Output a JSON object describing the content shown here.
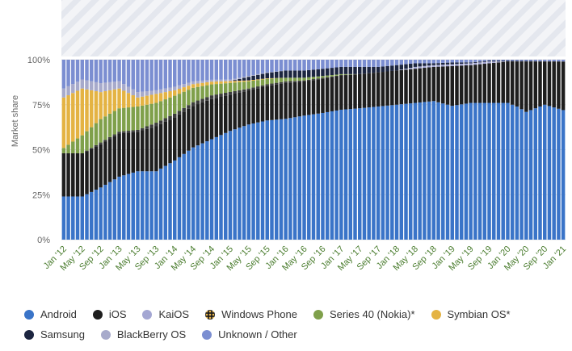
{
  "chart_data": {
    "type": "bar",
    "stacked": "percent",
    "ylabel": "Market share",
    "yticks": [
      "0%",
      "25%",
      "50%",
      "75%",
      "100%"
    ],
    "ylim": [
      0,
      100
    ],
    "grid": true,
    "legend_position": "bottom",
    "x_tick_labels": [
      "Jan '12",
      "May '12",
      "Sep '12",
      "Jan '13",
      "May '13",
      "Sep '13",
      "Jan '14",
      "May '14",
      "Sep '14",
      "Jan '15",
      "May '15",
      "Sep '15",
      "Jan '16",
      "May '16",
      "Sep '16",
      "Jan '17",
      "May '17",
      "Sep '17",
      "Jan '18",
      "May '18",
      "Sep '18",
      "Jan '19",
      "May '19",
      "Sep '19",
      "Jan '20",
      "May '20",
      "Sep '20",
      "Jan '21"
    ],
    "months": [
      "Jan '12",
      "Feb '12",
      "Mar '12",
      "Apr '12",
      "May '12",
      "Jun '12",
      "Jul '12",
      "Aug '12",
      "Sep '12",
      "Oct '12",
      "Nov '12",
      "Dec '12",
      "Jan '13",
      "Feb '13",
      "Mar '13",
      "Apr '13",
      "May '13",
      "Jun '13",
      "Jul '13",
      "Aug '13",
      "Sep '13",
      "Oct '13",
      "Nov '13",
      "Dec '13",
      "Jan '14",
      "Feb '14",
      "Mar '14",
      "Apr '14",
      "May '14",
      "Jun '14",
      "Jul '14",
      "Aug '14",
      "Sep '14",
      "Oct '14",
      "Nov '14",
      "Dec '14",
      "Jan '15",
      "Feb '15",
      "Mar '15",
      "Apr '15",
      "May '15",
      "Jun '15",
      "Jul '15",
      "Aug '15",
      "Sep '15",
      "Oct '15",
      "Nov '15",
      "Dec '15",
      "Jan '16",
      "Feb '16",
      "Mar '16",
      "Apr '16",
      "May '16",
      "Jun '16",
      "Jul '16",
      "Aug '16",
      "Sep '16",
      "Oct '16",
      "Nov '16",
      "Dec '16",
      "Jan '17",
      "Feb '17",
      "Mar '17",
      "Apr '17",
      "May '17",
      "Jun '17",
      "Jul '17",
      "Aug '17",
      "Sep '17",
      "Oct '17",
      "Nov '17",
      "Dec '17",
      "Jan '18",
      "Feb '18",
      "Mar '18",
      "Apr '18",
      "May '18",
      "Jun '18",
      "Jul '18",
      "Aug '18",
      "Sep '18",
      "Oct '18",
      "Nov '18",
      "Dec '18",
      "Jan '19",
      "Feb '19",
      "Mar '19",
      "Apr '19",
      "May '19",
      "Jun '19",
      "Jul '19",
      "Aug '19",
      "Sep '19",
      "Oct '19",
      "Nov '19",
      "Dec '19",
      "Jan '20",
      "Feb '20",
      "Mar '20",
      "Apr '20",
      "May '20",
      "Jun '20",
      "Jul '20",
      "Aug '20",
      "Sep '20",
      "Oct '20",
      "Nov '20",
      "Dec '20",
      "Jan '21"
    ],
    "value_anchors": {
      "Android": [
        [
          0,
          24
        ],
        [
          4,
          24
        ],
        [
          8,
          29
        ],
        [
          12,
          35
        ],
        [
          16,
          38
        ],
        [
          20,
          38
        ],
        [
          24,
          44
        ],
        [
          28,
          51
        ],
        [
          32,
          55
        ],
        [
          36,
          60
        ],
        [
          40,
          64
        ],
        [
          44,
          66
        ],
        [
          48,
          67
        ],
        [
          52,
          69
        ],
        [
          56,
          70
        ],
        [
          60,
          72
        ],
        [
          64,
          73
        ],
        [
          68,
          74
        ],
        [
          72,
          75
        ],
        [
          76,
          76
        ],
        [
          80,
          77
        ],
        [
          84,
          74
        ],
        [
          88,
          76
        ],
        [
          92,
          76
        ],
        [
          96,
          76
        ],
        [
          98,
          74
        ],
        [
          100,
          71
        ],
        [
          104,
          75
        ],
        [
          108,
          72
        ],
        [
          109,
          72
        ]
      ],
      "iOS": [
        [
          0,
          24
        ],
        [
          4,
          24
        ],
        [
          8,
          24
        ],
        [
          12,
          24
        ],
        [
          16,
          22
        ],
        [
          20,
          25
        ],
        [
          24,
          24
        ],
        [
          28,
          23
        ],
        [
          32,
          22
        ],
        [
          36,
          20
        ],
        [
          40,
          19
        ],
        [
          44,
          19
        ],
        [
          48,
          20
        ],
        [
          52,
          19
        ],
        [
          56,
          19
        ],
        [
          60,
          19
        ],
        [
          64,
          19
        ],
        [
          68,
          19
        ],
        [
          72,
          19
        ],
        [
          76,
          19
        ],
        [
          80,
          19
        ],
        [
          84,
          22
        ],
        [
          88,
          21
        ],
        [
          92,
          22
        ],
        [
          96,
          23
        ],
        [
          98,
          25
        ],
        [
          100,
          28
        ],
        [
          104,
          24
        ],
        [
          108,
          27
        ],
        [
          109,
          27
        ]
      ],
      "KaiOS": [
        [
          0,
          0
        ],
        [
          72,
          0
        ],
        [
          76,
          1
        ],
        [
          80,
          1
        ],
        [
          84,
          1
        ],
        [
          88,
          1
        ],
        [
          92,
          1
        ],
        [
          96,
          0
        ],
        [
          109,
          0
        ]
      ],
      "Windows Phone": [
        [
          0,
          0
        ],
        [
          4,
          0
        ],
        [
          8,
          1
        ],
        [
          12,
          1
        ],
        [
          16,
          1
        ],
        [
          20,
          2
        ],
        [
          24,
          2
        ],
        [
          28,
          2
        ],
        [
          32,
          2
        ],
        [
          36,
          1.5
        ],
        [
          40,
          1
        ],
        [
          44,
          1
        ],
        [
          48,
          0.8
        ],
        [
          52,
          0.6
        ],
        [
          56,
          0.4
        ],
        [
          60,
          0.2
        ],
        [
          64,
          0
        ],
        [
          109,
          0
        ]
      ],
      "Series 40 (Nokia)*": [
        [
          0,
          3
        ],
        [
          4,
          10
        ],
        [
          8,
          13
        ],
        [
          12,
          13
        ],
        [
          16,
          13
        ],
        [
          20,
          11
        ],
        [
          24,
          10
        ],
        [
          28,
          8
        ],
        [
          32,
          6
        ],
        [
          36,
          5
        ],
        [
          40,
          4
        ],
        [
          44,
          3
        ],
        [
          48,
          2
        ],
        [
          52,
          1.5
        ],
        [
          56,
          1
        ],
        [
          60,
          0.5
        ],
        [
          64,
          0
        ],
        [
          109,
          0
        ]
      ],
      "Symbian OS*": [
        [
          0,
          28
        ],
        [
          4,
          26
        ],
        [
          8,
          15
        ],
        [
          12,
          11
        ],
        [
          16,
          5
        ],
        [
          20,
          5
        ],
        [
          24,
          3
        ],
        [
          28,
          2
        ],
        [
          32,
          1.5
        ],
        [
          36,
          1
        ],
        [
          40,
          0.5
        ],
        [
          44,
          0.3
        ],
        [
          48,
          0
        ],
        [
          109,
          0
        ]
      ],
      "Samsung": [
        [
          0,
          0
        ],
        [
          36,
          0
        ],
        [
          40,
          2
        ],
        [
          44,
          3
        ],
        [
          48,
          4
        ],
        [
          52,
          4
        ],
        [
          56,
          4
        ],
        [
          60,
          4
        ],
        [
          64,
          4
        ],
        [
          68,
          3
        ],
        [
          72,
          3
        ],
        [
          76,
          2
        ],
        [
          80,
          1
        ],
        [
          84,
          1
        ],
        [
          88,
          0.5
        ],
        [
          92,
          0.5
        ],
        [
          96,
          0.5
        ],
        [
          109,
          0
        ]
      ],
      "BlackBerry OS": [
        [
          0,
          5
        ],
        [
          4,
          5
        ],
        [
          8,
          5
        ],
        [
          12,
          4
        ],
        [
          16,
          3
        ],
        [
          20,
          2
        ],
        [
          24,
          2
        ],
        [
          28,
          1.5
        ],
        [
          32,
          1
        ],
        [
          36,
          0.8
        ],
        [
          40,
          0.5
        ],
        [
          44,
          0.3
        ],
        [
          48,
          0
        ],
        [
          109,
          0
        ]
      ],
      "Unknown / Other": [
        [
          0,
          16
        ],
        [
          4,
          11
        ],
        [
          8,
          13
        ],
        [
          12,
          12
        ],
        [
          16,
          18
        ],
        [
          20,
          17
        ],
        [
          24,
          15
        ],
        [
          28,
          12
        ],
        [
          32,
          11
        ],
        [
          36,
          11
        ],
        [
          40,
          9
        ],
        [
          44,
          7
        ],
        [
          48,
          6
        ],
        [
          52,
          6
        ],
        [
          56,
          5
        ],
        [
          60,
          4
        ],
        [
          64,
          4
        ],
        [
          68,
          4
        ],
        [
          72,
          3
        ],
        [
          76,
          2
        ],
        [
          80,
          2
        ],
        [
          84,
          1.5
        ],
        [
          88,
          1.5
        ],
        [
          92,
          0.5
        ],
        [
          96,
          0.5
        ],
        [
          109,
          1
        ]
      ]
    },
    "series": [
      {
        "name": "Android",
        "color": "#3a74c8"
      },
      {
        "name": "iOS",
        "color": "#1e1e1e"
      },
      {
        "name": "KaiOS",
        "color": "#a4a7d3"
      },
      {
        "name": "Windows Phone",
        "color": "#3c3c3c",
        "marker": "dotted"
      },
      {
        "name": "Series 40 (Nokia)*",
        "color": "#7fa04b"
      },
      {
        "name": "Symbian OS*",
        "color": "#e4b343"
      },
      {
        "name": "Samsung",
        "color": "#1c2540"
      },
      {
        "name": "BlackBerry OS",
        "color": "#a7aacb"
      },
      {
        "name": "Unknown / Other",
        "color": "#7b8ed1"
      }
    ]
  }
}
